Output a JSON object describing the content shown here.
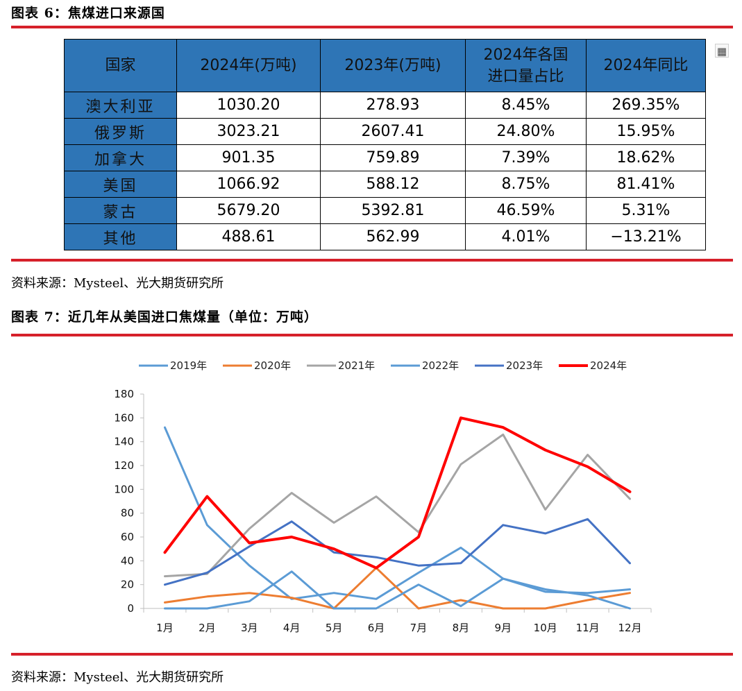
{
  "figure6": {
    "title": "图表 6：焦煤进口来源国",
    "headers": [
      "国家",
      "2024年(万吨)",
      "2023年(万吨)",
      "2024年各国",
      "进口量占比",
      "2024年同比"
    ],
    "rows": [
      [
        "澳大利亚",
        "1030.20",
        "278.93",
        "8.45%",
        "269.35%"
      ],
      [
        "俄罗斯",
        "3023.21",
        "2607.41",
        "24.80%",
        "15.95%"
      ],
      [
        "加拿大",
        "901.35",
        "759.89",
        "7.39%",
        "18.62%"
      ],
      [
        "美国",
        "1066.92",
        "588.12",
        "8.75%",
        "81.41%"
      ],
      [
        "蒙古",
        "5679.20",
        "5392.81",
        "46.59%",
        "5.31%"
      ],
      [
        "其他",
        "488.61",
        "562.99",
        "4.01%",
        "−13.21%"
      ]
    ],
    "source": "资料来源：Mysteel、光大期货研究所",
    "icon": "calculator-icon"
  },
  "figure7": {
    "title": "图表 7：近几年从美国进口焦煤量（单位：万吨）",
    "source": "资料来源：Mysteel、光大期货研究所"
  },
  "chart_data": {
    "type": "line",
    "title": "",
    "xlabel": "",
    "ylabel": "",
    "categories": [
      "1月",
      "2月",
      "3月",
      "4月",
      "5月",
      "6月",
      "7月",
      "8月",
      "9月",
      "10月",
      "11月",
      "12月"
    ],
    "ylim": [
      0,
      180
    ],
    "yticks": [
      0,
      20,
      40,
      60,
      80,
      100,
      120,
      140,
      160,
      180
    ],
    "legend_position": "top",
    "series": [
      {
        "name": "2019年",
        "color": "#5b9bd5",
        "width": 3,
        "values": [
          152,
          70,
          36,
          8,
          13,
          8,
          30,
          51,
          25,
          14,
          13,
          16
        ]
      },
      {
        "name": "2020年",
        "color": "#ed7d31",
        "width": 3,
        "values": [
          5,
          10,
          13,
          9,
          0,
          34,
          0,
          7,
          0,
          0,
          7,
          13
        ]
      },
      {
        "name": "2021年",
        "color": "#a5a5a5",
        "width": 3,
        "values": [
          27,
          29,
          67,
          97,
          72,
          94,
          64,
          121,
          146,
          83,
          129,
          92
        ]
      },
      {
        "name": "2022年",
        "color": "#5b9bd5",
        "width": 3,
        "values": [
          0,
          0,
          6,
          31,
          0,
          0,
          20,
          2,
          25,
          16,
          11,
          0
        ]
      },
      {
        "name": "2023年",
        "color": "#4472c4",
        "width": 3,
        "values": [
          20,
          30,
          52,
          73,
          47,
          43,
          36,
          38,
          70,
          63,
          75,
          38
        ]
      },
      {
        "name": "2024年",
        "color": "#ff0000",
        "width": 4,
        "values": [
          47,
          94,
          55,
          60,
          50,
          34,
          60,
          160,
          152,
          133,
          119,
          98
        ]
      }
    ]
  }
}
